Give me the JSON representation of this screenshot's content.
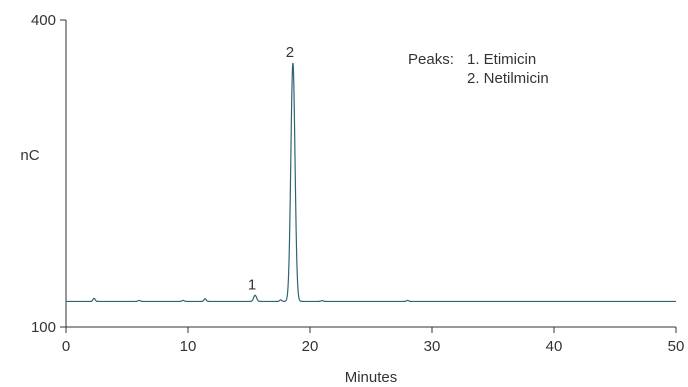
{
  "chart_data": {
    "type": "line",
    "title": "",
    "xlabel": "Minutes",
    "ylabel": "nC",
    "xlim": [
      0,
      50
    ],
    "ylim": [
      100,
      400
    ],
    "x_ticks": [
      0,
      10,
      20,
      30,
      40,
      50
    ],
    "y_ticks": [
      100,
      400
    ],
    "grid": false,
    "line_color": "#2d6474",
    "baseline": 125,
    "peaks": [
      {
        "label": "1",
        "name": "Etimicin",
        "x": 15.5,
        "y": 131
      },
      {
        "label": "2",
        "name": "Netilmicin",
        "x": 18.6,
        "y": 358
      }
    ],
    "minor_peaks": [
      {
        "x": 2.3,
        "y": 128
      },
      {
        "x": 6.0,
        "y": 126
      },
      {
        "x": 9.6,
        "y": 126
      },
      {
        "x": 11.4,
        "y": 127.5
      },
      {
        "x": 17.6,
        "y": 126.5
      },
      {
        "x": 21.0,
        "y": 125.8
      },
      {
        "x": 28.0,
        "y": 126
      }
    ],
    "legend": {
      "heading": "Peaks:",
      "entries": [
        "1. Etimicin",
        "2. Netilmicin"
      ],
      "position": "top-right"
    }
  }
}
